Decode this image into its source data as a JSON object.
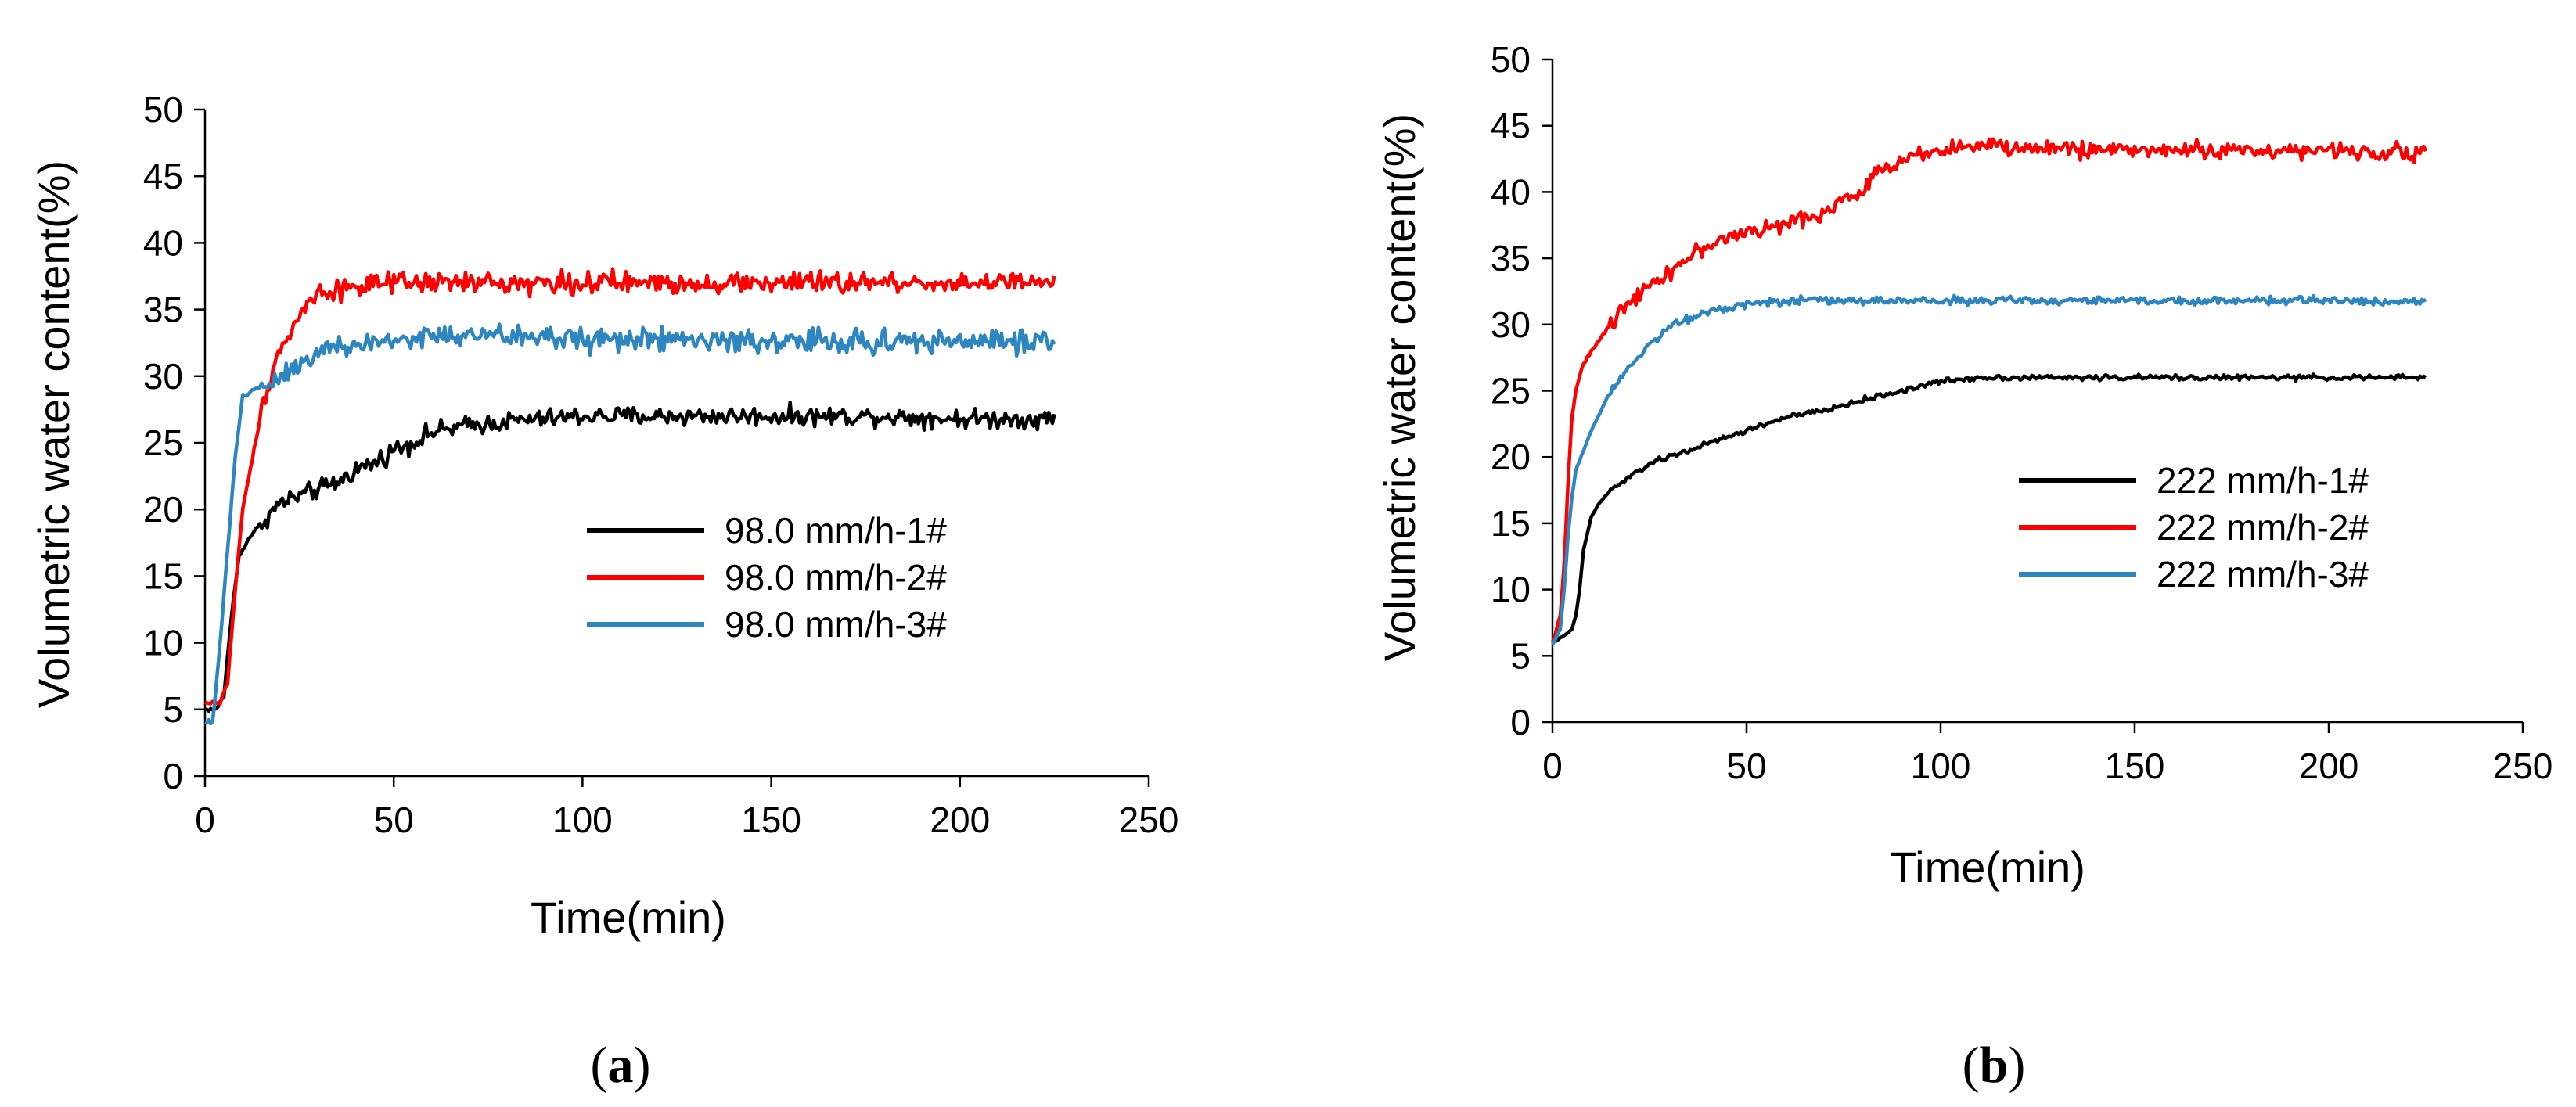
{
  "chart_data": [
    {
      "type": "line",
      "panel_label": "a",
      "xlabel": "Time(min)",
      "ylabel": "Volumetric water content(%)",
      "xlim": [
        0,
        250
      ],
      "ylim": [
        0,
        50
      ],
      "xticks": [
        0,
        50,
        100,
        150,
        200,
        250
      ],
      "yticks": [
        0,
        5,
        10,
        15,
        20,
        25,
        30,
        35,
        40,
        45,
        50
      ],
      "grid": false,
      "legend_position": "center-right",
      "series": [
        {
          "name": "98.0 mm/h-1#",
          "color": "#000000",
          "noise": 0.35,
          "x": [
            0,
            3,
            5,
            7,
            9,
            12,
            15,
            20,
            25,
            30,
            35,
            40,
            45,
            50,
            55,
            60,
            70,
            80,
            90,
            100,
            120,
            150,
            180,
            200,
            225
          ],
          "y": [
            5,
            5,
            6,
            12,
            16.5,
            18,
            19,
            20.5,
            21,
            21.5,
            22,
            23,
            23.5,
            24.5,
            25,
            25.8,
            26.3,
            26.6,
            26.8,
            27,
            27,
            27,
            27,
            26.8,
            26.8
          ]
        },
        {
          "name": "98.0 mm/h-2#",
          "color": "#ff0000",
          "noise": 0.4,
          "x": [
            0,
            4,
            6,
            8,
            10,
            14,
            18,
            22,
            26,
            30,
            35,
            40,
            60,
            100,
            150,
            200,
            225
          ],
          "y": [
            5.5,
            5.5,
            7,
            14,
            20,
            26,
            31,
            33,
            35,
            36.3,
            36.5,
            36.8,
            37,
            37,
            37,
            37,
            37
          ]
        },
        {
          "name": "98.0 mm/h-3#",
          "color": "#2e86c1",
          "noise": 0.45,
          "x": [
            0,
            2,
            4,
            6,
            8,
            10,
            20,
            30,
            33,
            40,
            50,
            60,
            80,
            100,
            150,
            200,
            225
          ],
          "y": [
            4,
            4,
            10,
            17,
            24,
            28.5,
            30,
            32,
            32,
            32.3,
            32.7,
            33,
            33,
            32.8,
            32.6,
            32.6,
            32.6
          ]
        }
      ]
    },
    {
      "type": "line",
      "panel_label": "b",
      "xlabel": "Time(min)",
      "ylabel": "Volumetric water content(%)",
      "xlim": [
        0,
        250
      ],
      "ylim": [
        0,
        50
      ],
      "xticks": [
        0,
        50,
        100,
        150,
        200,
        250
      ],
      "yticks": [
        0,
        5,
        10,
        15,
        20,
        25,
        30,
        35,
        40,
        45,
        50
      ],
      "grid": false,
      "legend_position": "center-right",
      "series": [
        {
          "name": "222 mm/h-1#",
          "color": "#000000",
          "noise": 0.1,
          "x": [
            0,
            3,
            5,
            6,
            7,
            8,
            10,
            12,
            15,
            20,
            25,
            30,
            40,
            50,
            60,
            70,
            80,
            90,
            100,
            110,
            150,
            180,
            200,
            225
          ],
          "y": [
            6,
            6.5,
            7,
            8,
            10,
            13,
            15.5,
            16.5,
            17.5,
            18.5,
            19.5,
            20,
            21,
            22,
            23,
            23.5,
            24.3,
            25,
            25.7,
            26,
            26,
            26,
            26,
            26
          ]
        },
        {
          "name": "222 mm/h-2#",
          "color": "#ff0000",
          "noise": 0.3,
          "x": [
            0,
            2,
            3,
            4,
            5,
            6,
            8,
            10,
            15,
            20,
            30,
            40,
            50,
            60,
            70,
            75,
            78,
            80,
            82,
            84,
            90,
            95,
            100,
            110,
            120,
            150,
            200,
            225
          ],
          "y": [
            6,
            8,
            12,
            18,
            23,
            25,
            27,
            28,
            30,
            32,
            34,
            36,
            37,
            37.5,
            38.5,
            39.5,
            39.5,
            40,
            41,
            41.5,
            42.5,
            43,
            43.2,
            43.5,
            43.3,
            43.2,
            43.1,
            43
          ]
        },
        {
          "name": "222 mm/h-3#",
          "color": "#2e86c1",
          "noise": 0.15,
          "x": [
            0,
            2,
            3,
            4,
            5,
            6,
            8,
            10,
            15,
            20,
            25,
            30,
            40,
            50,
            60,
            70,
            100,
            150,
            200,
            225
          ],
          "y": [
            5.8,
            7,
            10,
            14,
            17,
            19,
            20.5,
            22,
            25,
            27,
            28.5,
            29.8,
            31,
            31.6,
            31.8,
            31.8,
            31.8,
            31.8,
            31.8,
            31.8
          ]
        }
      ]
    }
  ],
  "captions": {
    "a": "a",
    "b": "b"
  }
}
